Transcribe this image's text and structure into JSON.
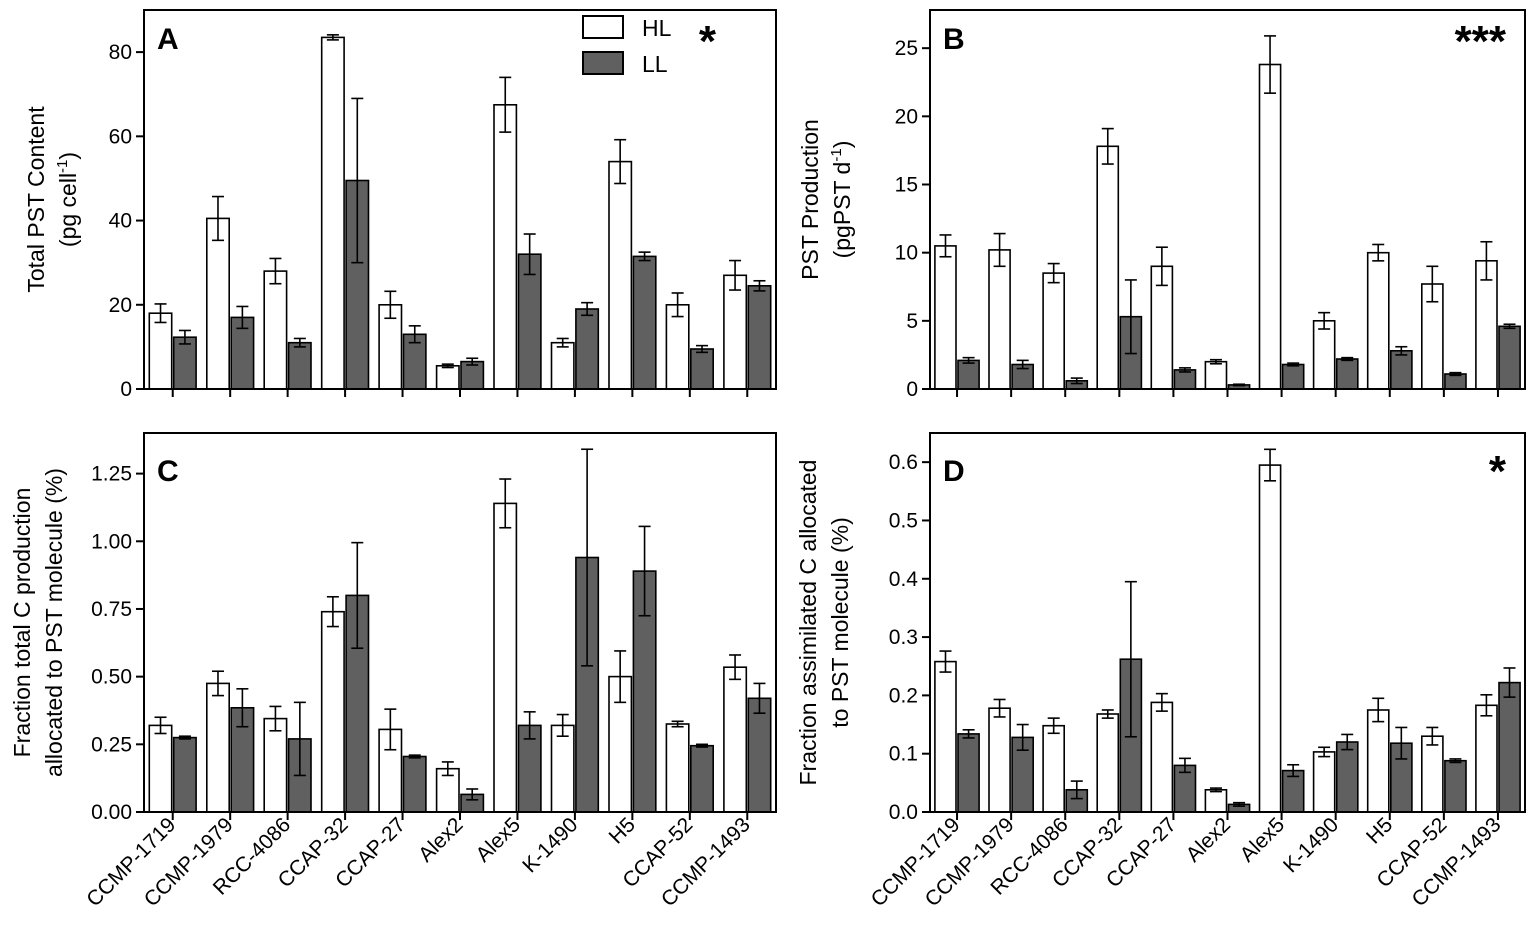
{
  "colors": {
    "hl_fill": "#ffffff",
    "ll_fill": "#606060",
    "stroke": "#000000"
  },
  "legend": {
    "hl": "HL",
    "ll": "LL"
  },
  "chart_data": [
    {
      "type": "bar",
      "panel": "A",
      "significance": "*",
      "ylabel_line1": "Total PST Content",
      "ylabel_line2": "(pg cell",
      "ylabel_sup": "-1",
      "ylabel_end": ")",
      "ylim": [
        0,
        90
      ],
      "yticks": [
        0,
        20,
        40,
        60,
        80
      ],
      "yticklabels": [
        "0",
        "20",
        "40",
        "60",
        "80"
      ],
      "categories": [
        "CCMP-1719",
        "CCMP-1979",
        "RCC-4086",
        "CCAP-32",
        "CCAP-27",
        "Alex2",
        "Alex5",
        "K-1490",
        "H5",
        "CCAP-52",
        "CCMP-1493"
      ],
      "show_categories": false,
      "series": [
        {
          "name": "HL",
          "values": [
            18,
            40.5,
            28,
            83.5,
            20,
            5.5,
            67.5,
            11,
            54,
            20,
            27
          ],
          "errors": [
            2.2,
            5.2,
            3,
            0.6,
            3.2,
            0.4,
            6.5,
            1,
            5.2,
            2.8,
            3.5
          ]
        },
        {
          "name": "LL",
          "values": [
            12.3,
            17,
            11,
            49.5,
            13,
            6.5,
            32,
            19,
            31.5,
            9.5,
            24.5
          ],
          "errors": [
            1.6,
            2.6,
            1,
            19.5,
            2,
            0.8,
            4.8,
            1.5,
            1,
            0.8,
            1.2
          ]
        }
      ]
    },
    {
      "type": "bar",
      "panel": "B",
      "significance": "***",
      "ylabel_line1": "PST Production",
      "ylabel_line2": "(pgPST d",
      "ylabel_sup": "-1",
      "ylabel_end": ")",
      "ylim": [
        0,
        27.8
      ],
      "yticks": [
        0,
        5,
        10,
        15,
        20,
        25
      ],
      "yticklabels": [
        "0",
        "5",
        "10",
        "15",
        "20",
        "25"
      ],
      "categories": [
        "CCMP-1719",
        "CCMP-1979",
        "RCC-4086",
        "CCAP-32",
        "CCAP-27",
        "Alex2",
        "Alex5",
        "K-1490",
        "H5",
        "CCAP-52",
        "CCMP-1493"
      ],
      "show_categories": false,
      "series": [
        {
          "name": "HL",
          "values": [
            10.5,
            10.2,
            8.5,
            17.8,
            9,
            2,
            23.8,
            5,
            10,
            7.7,
            9.4
          ],
          "errors": [
            0.8,
            1.2,
            0.7,
            1.3,
            1.4,
            0.15,
            2.1,
            0.6,
            0.6,
            1.3,
            1.4
          ]
        },
        {
          "name": "LL",
          "values": [
            2.1,
            1.8,
            0.6,
            5.3,
            1.4,
            0.3,
            1.8,
            2.2,
            2.8,
            1.1,
            4.6
          ],
          "errors": [
            0.2,
            0.3,
            0.2,
            2.7,
            0.15,
            0.05,
            0.1,
            0.1,
            0.3,
            0.1,
            0.15
          ]
        }
      ]
    },
    {
      "type": "bar",
      "panel": "C",
      "significance": "",
      "ylabel_line1": "Fraction total C production",
      "ylabel_line2": "allocated to PST molecule (%)",
      "ylabel_sup": "",
      "ylabel_end": "",
      "ylim": [
        0,
        1.4
      ],
      "yticks": [
        0,
        0.25,
        0.5,
        0.75,
        1.0,
        1.25
      ],
      "yticklabels": [
        "0.00",
        "0.25",
        "0.50",
        "0.75",
        "1.00",
        "1.25"
      ],
      "categories": [
        "CCMP-1719",
        "CCMP-1979",
        "RCC-4086",
        "CCAP-32",
        "CCAP-27",
        "Alex2",
        "Alex5",
        "K-1490",
        "H5",
        "CCAP-52",
        "CCMP-1493"
      ],
      "show_categories": true,
      "series": [
        {
          "name": "HL",
          "values": [
            0.32,
            0.475,
            0.345,
            0.74,
            0.305,
            0.16,
            1.14,
            0.32,
            0.5,
            0.325,
            0.535
          ],
          "errors": [
            0.03,
            0.045,
            0.045,
            0.055,
            0.075,
            0.025,
            0.09,
            0.04,
            0.095,
            0.01,
            0.045
          ]
        },
        {
          "name": "LL",
          "values": [
            0.275,
            0.385,
            0.27,
            0.8,
            0.205,
            0.065,
            0.32,
            0.94,
            0.89,
            0.245,
            0.42
          ],
          "errors": [
            0.005,
            0.07,
            0.135,
            0.195,
            0.005,
            0.02,
            0.05,
            0.4,
            0.165,
            0.005,
            0.055
          ]
        }
      ]
    },
    {
      "type": "bar",
      "panel": "D",
      "significance": "*",
      "ylabel_line1": "Fraction assimilated C allocated",
      "ylabel_line2": "to PST molecule (%)",
      "ylabel_sup": "",
      "ylabel_end": "",
      "ylim": [
        0,
        0.65
      ],
      "yticks": [
        0,
        0.1,
        0.2,
        0.3,
        0.4,
        0.5,
        0.6
      ],
      "yticklabels": [
        "0.0",
        "0.1",
        "0.2",
        "0.3",
        "0.4",
        "0.5",
        "0.6"
      ],
      "categories": [
        "CCMP-1719",
        "CCMP-1979",
        "RCC-4086",
        "CCAP-32",
        "CCAP-27",
        "Alex2",
        "Alex5",
        "K-1490",
        "H5",
        "CCAP-52",
        "CCMP-1493"
      ],
      "show_categories": true,
      "series": [
        {
          "name": "HL",
          "values": [
            0.258,
            0.178,
            0.148,
            0.168,
            0.188,
            0.038,
            0.595,
            0.103,
            0.175,
            0.13,
            0.183
          ],
          "errors": [
            0.018,
            0.015,
            0.013,
            0.007,
            0.015,
            0.003,
            0.027,
            0.008,
            0.02,
            0.015,
            0.018
          ]
        },
        {
          "name": "LL",
          "values": [
            0.134,
            0.128,
            0.038,
            0.262,
            0.08,
            0.013,
            0.071,
            0.12,
            0.118,
            0.088,
            0.222
          ],
          "errors": [
            0.007,
            0.022,
            0.015,
            0.133,
            0.012,
            0.003,
            0.01,
            0.013,
            0.027,
            0.003,
            0.025
          ]
        }
      ]
    }
  ]
}
